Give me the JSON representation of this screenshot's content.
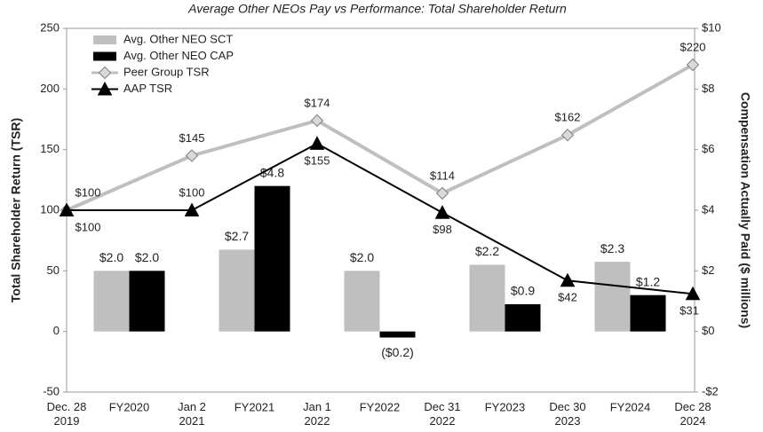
{
  "chart_data": {
    "type": "combo",
    "title": "Average Other NEOs Pay vs Performance: Total Shareholder Return",
    "ylabel": "Total Shareholder Return (TSR)",
    "y2label": "Compensation Actually Paid ($ millions)",
    "date_categories": [
      [
        "Dec. 28",
        "2019"
      ],
      [
        "Jan 2",
        "2021"
      ],
      [
        "Jan 1",
        "2022"
      ],
      [
        "Dec 31",
        "2022"
      ],
      [
        "Dec 30",
        "2023"
      ],
      [
        "Dec 28",
        "2024"
      ]
    ],
    "fy_categories": [
      "FY2020",
      "FY2021",
      "FY2022",
      "FY2023",
      "FY2024"
    ],
    "series": [
      {
        "name": "Avg. Other NEO SCT",
        "type": "bar",
        "axis": "y2",
        "color": "#bfbfbf",
        "values": [
          2.0,
          2.7,
          2.0,
          2.2,
          2.3
        ],
        "value_labels": [
          "$2.0",
          "$2.7",
          "$2.0",
          "$2.2",
          "$2.3"
        ]
      },
      {
        "name": "Avg. Other NEO CAP",
        "type": "bar",
        "axis": "y2",
        "color": "#000000",
        "values": [
          2.0,
          4.8,
          -0.2,
          0.9,
          1.2
        ],
        "value_labels": [
          "$2.0",
          "$4.8",
          "($0.2)",
          "$0.9",
          "$1.2"
        ]
      },
      {
        "name": "Peer Group TSR",
        "type": "line",
        "color": "#bfbfbf",
        "marker": "diamond",
        "values": [
          100,
          145,
          174,
          114,
          162,
          220
        ],
        "value_labels": [
          "$100",
          "$145",
          "$174",
          "$114",
          "$162",
          "$220"
        ]
      },
      {
        "name": "AAP TSR",
        "type": "line",
        "color": "#000000",
        "marker": "triangle",
        "values": [
          100,
          100,
          155,
          98,
          42,
          31
        ],
        "value_labels": [
          "$100",
          "$100",
          "$155",
          "$98",
          "$42",
          "$31"
        ]
      }
    ],
    "ylim": [
      -50,
      250
    ],
    "yticks": [
      -50,
      0,
      50,
      100,
      150,
      200,
      250
    ],
    "y2lim": [
      -2,
      10
    ],
    "y2ticks": [
      {
        "value": -2,
        "label": "-$2"
      },
      {
        "value": 0,
        "label": "$0"
      },
      {
        "value": 2,
        "label": "$2"
      },
      {
        "value": 4,
        "label": "$4"
      },
      {
        "value": 6,
        "label": "$6"
      },
      {
        "value": 8,
        "label": "$8"
      },
      {
        "value": 10,
        "label": "$10"
      }
    ],
    "legend": "upper left"
  }
}
